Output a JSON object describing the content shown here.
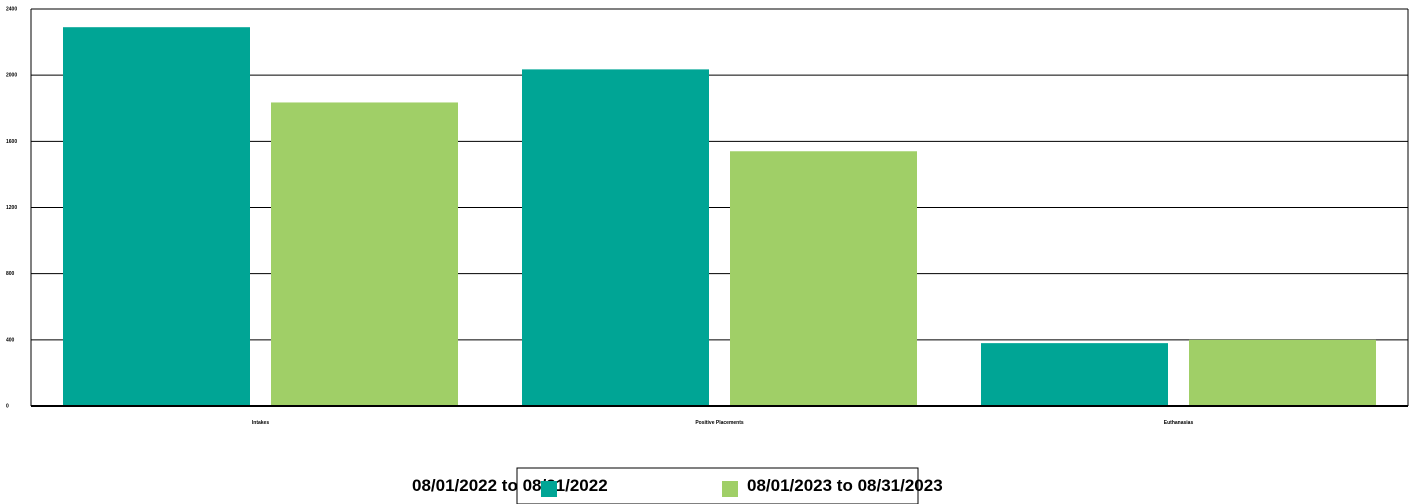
{
  "chart_data": {
    "type": "bar",
    "categories": [
      "Intakes",
      "Positive Placements",
      "Euthanasias"
    ],
    "series": [
      {
        "name": "08/01/2022 to 08/31/2022",
        "values": [
          2290,
          2035,
          380
        ]
      },
      {
        "name": "08/01/2023 to 08/31/2023",
        "values": [
          1835,
          1540,
          400
        ]
      }
    ],
    "colors": [
      "#00a595",
      "#a0cf67"
    ],
    "ylim": [
      0,
      2400
    ],
    "yticks": [
      0,
      400,
      800,
      1200,
      1600,
      2000,
      2400
    ],
    "grid": true,
    "legend_position": "bottom",
    "title": "",
    "xlabel": "",
    "ylabel": ""
  }
}
